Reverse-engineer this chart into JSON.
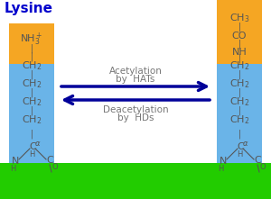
{
  "title": "Lysine",
  "title_color": "#0000cc",
  "bg_color": "#ffffff",
  "orange_color": "#f5a623",
  "blue_color": "#6ab4e8",
  "green_color": "#22cc00",
  "arrow_color": "#000099",
  "text_color": "#777777",
  "chem_color": "#555555",
  "acetylation_text": [
    "Acetylation",
    "by  HATs"
  ],
  "deacetylation_text": [
    "Deacetylation",
    "by  HDs"
  ],
  "figw": 3.0,
  "figh": 2.21,
  "dpi": 100
}
